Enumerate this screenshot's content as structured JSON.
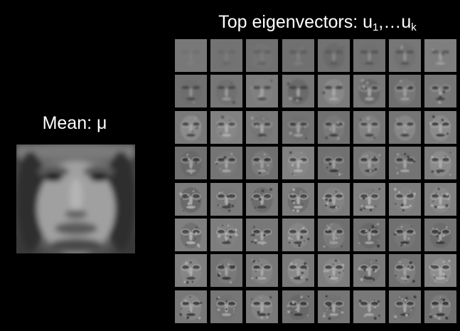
{
  "mean": {
    "label": "Mean: μ"
  },
  "eigen": {
    "label_main": "Top eigenvectors: u",
    "label_sub1": "1",
    "label_mid": ",…u",
    "label_subk": "k",
    "rows": 8,
    "cols": 8
  },
  "colors": {
    "background": "#000000",
    "text": "#ffffff"
  }
}
